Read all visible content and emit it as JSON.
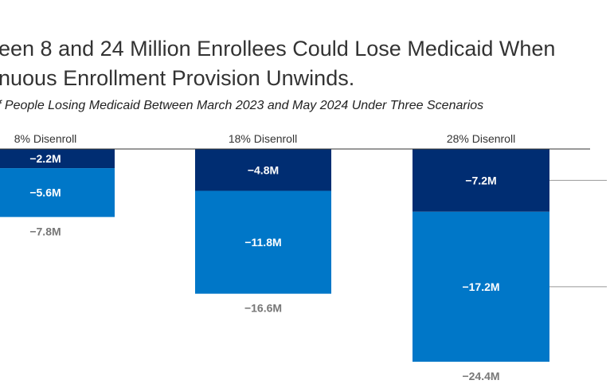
{
  "header": {
    "title_line1": "een 8 and 24 Million Enrollees Could Lose Medicaid When",
    "title_line2": "nuous Enrollment Provision Unwinds.",
    "subtitle": "f People Losing Medicaid Between March 2023 and May 2024 Under Three Scenarios"
  },
  "chart_data": {
    "type": "bar",
    "stacked": true,
    "orientation": "vertical-downward",
    "title": "een 8 and 24 Million Enrollees Could Lose Medicaid When nuous Enrollment Provision Unwinds.",
    "subtitle": "f People Losing Medicaid Between March 2023 and May 2024 Under Three Scenarios",
    "categories": [
      "8% Disenroll",
      "18% Disenroll",
      "28% Disenroll"
    ],
    "series": [
      {
        "name": "top segment",
        "color": "#002d72",
        "values": [
          -2.2,
          -4.8,
          -7.2
        ],
        "labels": [
          "−2.2M",
          "−4.8M",
          "−7.2M"
        ]
      },
      {
        "name": "bottom segment",
        "color": "#0077c8",
        "values": [
          -5.6,
          -11.8,
          -17.2
        ],
        "labels": [
          "−5.6M",
          "−11.8M",
          "−17.2M"
        ]
      }
    ],
    "totals": [
      -7.8,
      -16.6,
      -24.4
    ],
    "total_labels": [
      "−7.8M",
      "−16.6M",
      "−24.4M"
    ],
    "units": "millions of people",
    "xlabel": "",
    "ylabel": "",
    "ylim": [
      -24.4,
      0
    ],
    "grid": false,
    "legend": "right (cropped, leader lines only)",
    "colors": {
      "dark": "#002d72",
      "light": "#0077c8",
      "total_text": "#777777",
      "baseline": "#333333",
      "leader": "#999999"
    }
  }
}
